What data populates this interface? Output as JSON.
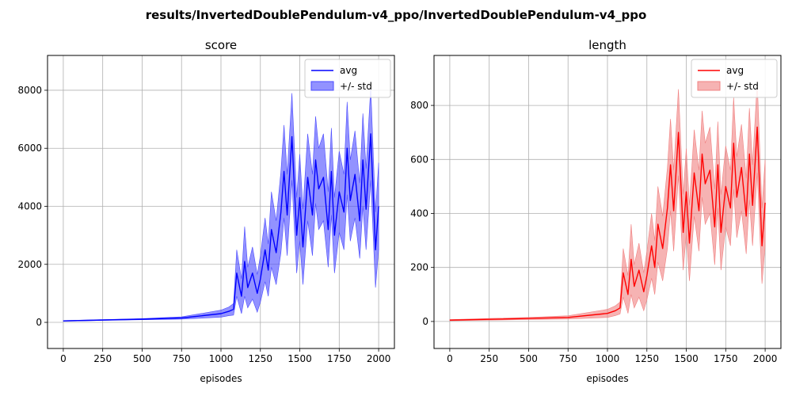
{
  "suptitle": "results/InvertedDoublePendulum-v4_ppo/InvertedDoublePendulum-v4_ppo",
  "chart_data": [
    {
      "type": "line",
      "title": "score",
      "xlabel": "episodes",
      "ylabel": "",
      "xlim": [
        -100,
        2100
      ],
      "ylim": [
        -900,
        9200
      ],
      "xticks": [
        0,
        250,
        500,
        750,
        1000,
        1250,
        1500,
        1750,
        2000
      ],
      "yticks": [
        0,
        2000,
        4000,
        6000,
        8000
      ],
      "grid": true,
      "legend_position": "top-right",
      "legend": [
        "avg",
        "+/- std"
      ],
      "color": "#0000ff",
      "band_color": "#4a4aff",
      "series": [
        {
          "name": "avg",
          "x": [
            0,
            250,
            500,
            750,
            1000,
            1050,
            1080,
            1100,
            1130,
            1150,
            1170,
            1200,
            1230,
            1250,
            1280,
            1300,
            1320,
            1350,
            1380,
            1400,
            1420,
            1450,
            1480,
            1500,
            1520,
            1550,
            1580,
            1600,
            1620,
            1650,
            1680,
            1700,
            1720,
            1750,
            1780,
            1800,
            1820,
            1850,
            1880,
            1900,
            1920,
            1950,
            1980,
            2000
          ],
          "y": [
            50,
            80,
            110,
            150,
            300,
            380,
            450,
            1700,
            900,
            2100,
            1200,
            1700,
            1000,
            1500,
            2500,
            1800,
            3200,
            2400,
            3800,
            5200,
            3700,
            6400,
            3000,
            4300,
            2600,
            5000,
            3700,
            5600,
            4600,
            5000,
            3200,
            5200,
            3000,
            4500,
            3800,
            6000,
            4200,
            5100,
            3500,
            5600,
            3900,
            6500,
            2500,
            4000
          ],
          "std": [
            10,
            15,
            20,
            40,
            120,
            150,
            200,
            800,
            600,
            1200,
            700,
            900,
            650,
            800,
            1100,
            900,
            1300,
            1100,
            1400,
            1600,
            1400,
            1500,
            1300,
            1500,
            1300,
            1500,
            1400,
            1500,
            1400,
            1500,
            1300,
            1500,
            1300,
            1400,
            1300,
            1600,
            1400,
            1500,
            1300,
            1600,
            1400,
            1600,
            1300,
            1500
          ]
        }
      ]
    },
    {
      "type": "line",
      "title": "length",
      "xlabel": "episodes",
      "ylabel": "",
      "xlim": [
        -100,
        2100
      ],
      "ylim": [
        -100,
        985
      ],
      "xticks": [
        0,
        250,
        500,
        750,
        1000,
        1250,
        1500,
        1750,
        2000
      ],
      "yticks": [
        0,
        200,
        400,
        600,
        800
      ],
      "grid": true,
      "legend_position": "top-right",
      "legend": [
        "avg",
        "+/- std"
      ],
      "color": "#ff0000",
      "band_color": "#f08080",
      "series": [
        {
          "name": "avg",
          "x": [
            0,
            250,
            500,
            750,
            1000,
            1050,
            1080,
            1100,
            1130,
            1150,
            1170,
            1200,
            1230,
            1250,
            1280,
            1300,
            1320,
            1350,
            1380,
            1400,
            1420,
            1450,
            1480,
            1500,
            1520,
            1550,
            1580,
            1600,
            1620,
            1650,
            1680,
            1700,
            1720,
            1750,
            1780,
            1800,
            1820,
            1850,
            1880,
            1900,
            1920,
            1950,
            1980,
            2000
          ],
          "y": [
            5,
            8,
            11,
            15,
            30,
            40,
            50,
            180,
            100,
            230,
            130,
            190,
            110,
            170,
            280,
            200,
            360,
            270,
            420,
            580,
            410,
            700,
            330,
            480,
            290,
            550,
            410,
            620,
            510,
            560,
            350,
            580,
            330,
            500,
            420,
            660,
            460,
            570,
            390,
            620,
            430,
            720,
            280,
            440
          ],
          "std": [
            2,
            3,
            4,
            6,
            15,
            18,
            22,
            90,
            70,
            130,
            80,
            100,
            70,
            90,
            120,
            100,
            140,
            120,
            150,
            170,
            150,
            160,
            140,
            160,
            140,
            160,
            150,
            160,
            150,
            160,
            140,
            160,
            140,
            150,
            140,
            170,
            150,
            160,
            140,
            170,
            150,
            170,
            140,
            160
          ]
        }
      ]
    }
  ]
}
